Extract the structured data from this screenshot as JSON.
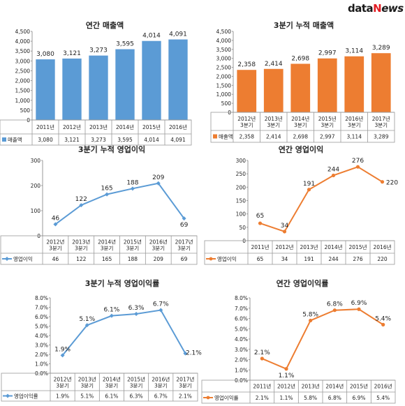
{
  "brand": {
    "part1": "data",
    "part2": "N",
    "part3": "ews"
  },
  "colors": {
    "blue": "#5b9bd5",
    "orange": "#ed7d31",
    "line_blue": "#5b9bd5",
    "line_orange": "#ed7d31"
  },
  "chart_data": [
    {
      "type": "bar",
      "title": "연간 매출액",
      "categories": [
        "2011년",
        "2012년",
        "2013년",
        "2014년",
        "2015년",
        "2016년"
      ],
      "series": [
        {
          "name": "매출액",
          "values": [
            3080,
            3121,
            3273,
            3595,
            4014,
            4091
          ]
        }
      ],
      "value_labels": [
        "3,080",
        "3,121",
        "3,273",
        "3,595",
        "4,014",
        "4,091"
      ],
      "yticks": [
        "0",
        "500",
        "1,000",
        "1,500",
        "2,000",
        "2,500",
        "3,000",
        "3,500",
        "4,000",
        "4,500"
      ],
      "ylim": [
        0,
        4500
      ],
      "color": "#5b9bd5",
      "grid": false,
      "legend": "table"
    },
    {
      "type": "bar",
      "title": "3분기 누적 매출액",
      "categories": [
        "2012년|3분기",
        "2013년|3분기",
        "2014년|3분기",
        "2015년|3분기",
        "2016년|3분기",
        "2017년|3분기"
      ],
      "series": [
        {
          "name": "매출액",
          "values": [
            2358,
            2414,
            2698,
            2997,
            3114,
            3289
          ]
        }
      ],
      "value_labels": [
        "2,358",
        "2,414",
        "2,698",
        "2,997",
        "3,114",
        "3,289"
      ],
      "yticks": [
        "0",
        "500",
        "1,000",
        "1,500",
        "2,000",
        "2,500",
        "3,000",
        "3,500",
        "4,000",
        "4,500"
      ],
      "ylim": [
        0,
        4500
      ],
      "color": "#ed7d31",
      "grid": false,
      "legend": "table"
    },
    {
      "type": "line",
      "title": "3분기 누적 영업이익",
      "categories": [
        "2012년|3분기",
        "2013년|3분기",
        "2014년|3분기",
        "2015년|3분기",
        "2016년|3분기",
        "2017년|3분기"
      ],
      "series": [
        {
          "name": "영업이익",
          "values": [
            46,
            122,
            165,
            188,
            209,
            69
          ]
        }
      ],
      "value_labels": [
        "46",
        "122",
        "165",
        "188",
        "209",
        "69"
      ],
      "yticks": [
        "0",
        "100",
        "200",
        "300"
      ],
      "ylim": [
        0,
        300
      ],
      "color": "#5b9bd5",
      "grid": false,
      "legend": "table"
    },
    {
      "type": "line",
      "title": "연간 영업이익",
      "categories": [
        "2011년",
        "2012년",
        "2013년",
        "2014년",
        "2015년",
        "2016년"
      ],
      "series": [
        {
          "name": "영업이익",
          "values": [
            65,
            34,
            191,
            244,
            276,
            220
          ]
        }
      ],
      "value_labels": [
        "65",
        "34",
        "191",
        "244",
        "276",
        "220"
      ],
      "yticks": [
        "0",
        "50",
        "100",
        "150",
        "200",
        "250",
        "300"
      ],
      "ylim": [
        0,
        300
      ],
      "color": "#ed7d31",
      "grid": false,
      "legend": "table"
    },
    {
      "type": "line",
      "title": "3분기 누적 영업이익률",
      "categories": [
        "2012년|3분기",
        "2013년|3분기",
        "2014년|3분기",
        "2015년|3분기",
        "2016년|3분기",
        "2017년|3분기"
      ],
      "series": [
        {
          "name": "영업이익률",
          "values": [
            1.9,
            5.1,
            6.1,
            6.3,
            6.7,
            2.1
          ]
        }
      ],
      "value_labels": [
        "1.9%",
        "5.1%",
        "6.1%",
        "6.3%",
        "6.7%",
        "2.1%"
      ],
      "yticks": [
        "0.0%",
        "1.0%",
        "2.0%",
        "3.0%",
        "4.0%",
        "5.0%",
        "6.0%",
        "7.0%",
        "8.0%"
      ],
      "ylim": [
        0,
        8
      ],
      "color": "#5b9bd5",
      "grid": false,
      "legend": "table"
    },
    {
      "type": "line",
      "title": "연간 영업이익률",
      "categories": [
        "2011년",
        "2012년",
        "2013년",
        "2014년",
        "2015년",
        "2016년"
      ],
      "series": [
        {
          "name": "영업이익률",
          "values": [
            2.1,
            1.1,
            5.8,
            6.8,
            6.9,
            5.4
          ]
        }
      ],
      "value_labels": [
        "2.1%",
        "1.1%",
        "5.8%",
        "6.8%",
        "6.9%",
        "5.4%"
      ],
      "yticks": [
        "0.0%",
        "1.0%",
        "2.0%",
        "3.0%",
        "4.0%",
        "5.0%",
        "6.0%",
        "7.0%",
        "8.0%"
      ],
      "ylim": [
        0,
        8
      ],
      "color": "#ed7d31",
      "grid": false,
      "legend": "table"
    }
  ]
}
